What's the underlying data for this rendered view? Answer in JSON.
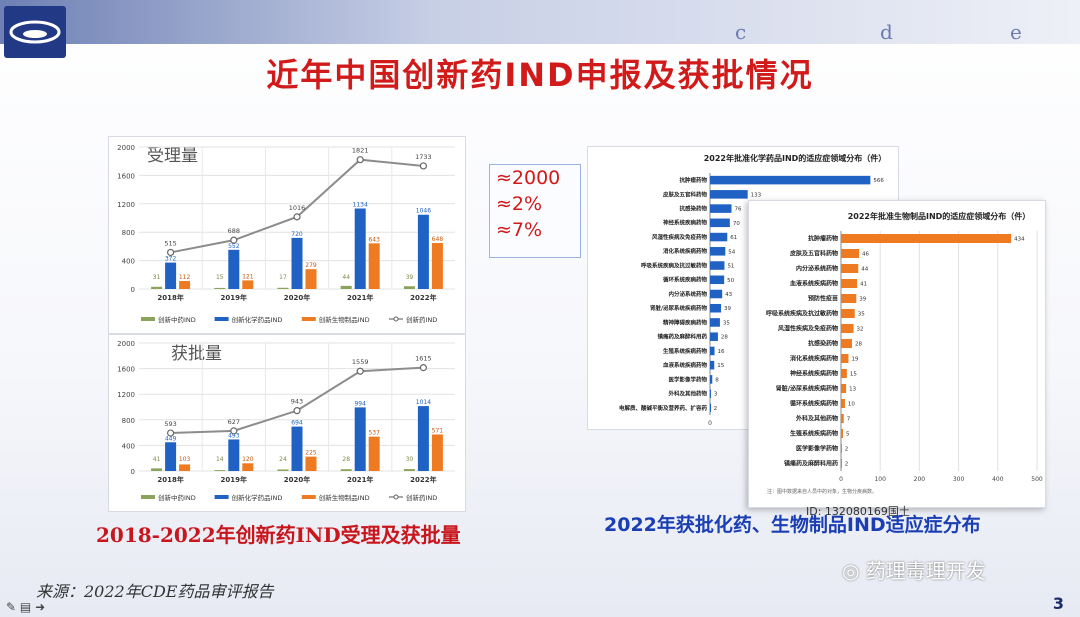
{
  "slide": {
    "header_letters": [
      "c",
      "d",
      "e"
    ],
    "title": "近年中国创新药IND申报及获批情况",
    "callout": [
      "≈2000",
      "≈2%",
      "≈7%"
    ],
    "caption_left": "2018-2022年创新药IND受理及获批量",
    "caption_right": "2022年获批化药、生物制品IND适应症分布",
    "source": "来源：2022年CDE药品审评报告",
    "watermark": "药理毒理开发",
    "page_number": "3",
    "overlay_id": "ID: 132080169国土",
    "footnote": "注：图中数据来自人员中的对象，生物分疾病数。"
  },
  "chart_data": [
    {
      "type": "bar",
      "title": "受理量",
      "categories": [
        "2018年",
        "2019年",
        "2020年",
        "2021年",
        "2022年"
      ],
      "ylim": [
        0,
        2000
      ],
      "yticks": [
        0,
        400,
        800,
        1200,
        1600,
        2000
      ],
      "series": [
        {
          "name": "创新中药IND",
          "kind": "bar",
          "color": "#8ba35a",
          "values": [
            31,
            15,
            17,
            44,
            39
          ]
        },
        {
          "name": "创新化学药品IND",
          "kind": "bar",
          "color": "#1f62c4",
          "values": [
            372,
            552,
            720,
            1134,
            1046
          ]
        },
        {
          "name": "创新生物制品IND",
          "kind": "bar",
          "color": "#ee7a22",
          "values": [
            112,
            121,
            279,
            643,
            648
          ]
        },
        {
          "name": "创新药IND",
          "kind": "line",
          "color": "#8c8c8c",
          "values": [
            515,
            688,
            1016,
            1821,
            1733
          ]
        }
      ]
    },
    {
      "type": "bar",
      "title": "获批量",
      "categories": [
        "2018年",
        "2019年",
        "2020年",
        "2021年",
        "2022年"
      ],
      "ylim": [
        0,
        2000
      ],
      "yticks": [
        0,
        400,
        800,
        1200,
        1600,
        2000
      ],
      "series": [
        {
          "name": "创新中药IND",
          "kind": "bar",
          "color": "#8ba35a",
          "values": [
            41,
            14,
            24,
            28,
            30
          ]
        },
        {
          "name": "创新化学药品IND",
          "kind": "bar",
          "color": "#1f62c4",
          "values": [
            449,
            493,
            694,
            994,
            1014
          ]
        },
        {
          "name": "创新生物制品IND",
          "kind": "bar",
          "color": "#ee7a22",
          "values": [
            103,
            120,
            225,
            537,
            571
          ]
        },
        {
          "name": "创新药IND",
          "kind": "line",
          "color": "#8c8c8c",
          "values": [
            593,
            627,
            943,
            1559,
            1615
          ]
        }
      ]
    },
    {
      "type": "bar",
      "orientation": "horizontal",
      "title": "2022年批准化学药品IND的适应症领域分布（件）",
      "categories": [
        "抗肿瘤药物",
        "皮肤及五官科药物",
        "抗感染药物",
        "神经系统疾病药物",
        "风湿性疾病及免疫药物",
        "消化系统疾病药物",
        "呼吸系统疾病及抗过敏药物",
        "循环系统疾病药物",
        "内分泌系统药物",
        "肾脏/泌尿系统疾病药物",
        "精神障碍疾病药物",
        "镇痛药及麻醉科用药",
        "生殖系统疾病药物",
        "血液系统疾病药物",
        "医学影像学药物",
        "外科及其他药物",
        "电解质、酸碱平衡及营养药、扩容药"
      ],
      "values": [
        566,
        133,
        76,
        70,
        61,
        54,
        51,
        50,
        43,
        39,
        35,
        28,
        16,
        15,
        8,
        3,
        2
      ],
      "xlim": [
        0,
        600
      ],
      "color": "#1f62c4"
    },
    {
      "type": "bar",
      "orientation": "horizontal",
      "title": "2022年批准生物制品IND的适应症领域分布（件）",
      "categories": [
        "抗肿瘤药物",
        "皮肤及五官科药物",
        "内分泌系统药物",
        "血液系统疾病药物",
        "预防性疫苗",
        "呼吸系统疾病及抗过敏药物",
        "风湿性疾病及免疫药物",
        "抗感染药物",
        "消化系统疾病药物",
        "神经系统疾病药物",
        "肾脏/泌尿系统疾病药物",
        "循环系统疾病药物",
        "外科及其他药物",
        "生殖系统疾病药物",
        "医学影像学药物",
        "镇痛药及麻醉科用药"
      ],
      "values": [
        434,
        46,
        44,
        41,
        39,
        35,
        32,
        28,
        19,
        15,
        13,
        10,
        7,
        5,
        2,
        2
      ],
      "xlim": [
        0,
        500
      ],
      "xticks": [
        0,
        100,
        200,
        300,
        400,
        500
      ],
      "color": "#ee7a22"
    }
  ]
}
